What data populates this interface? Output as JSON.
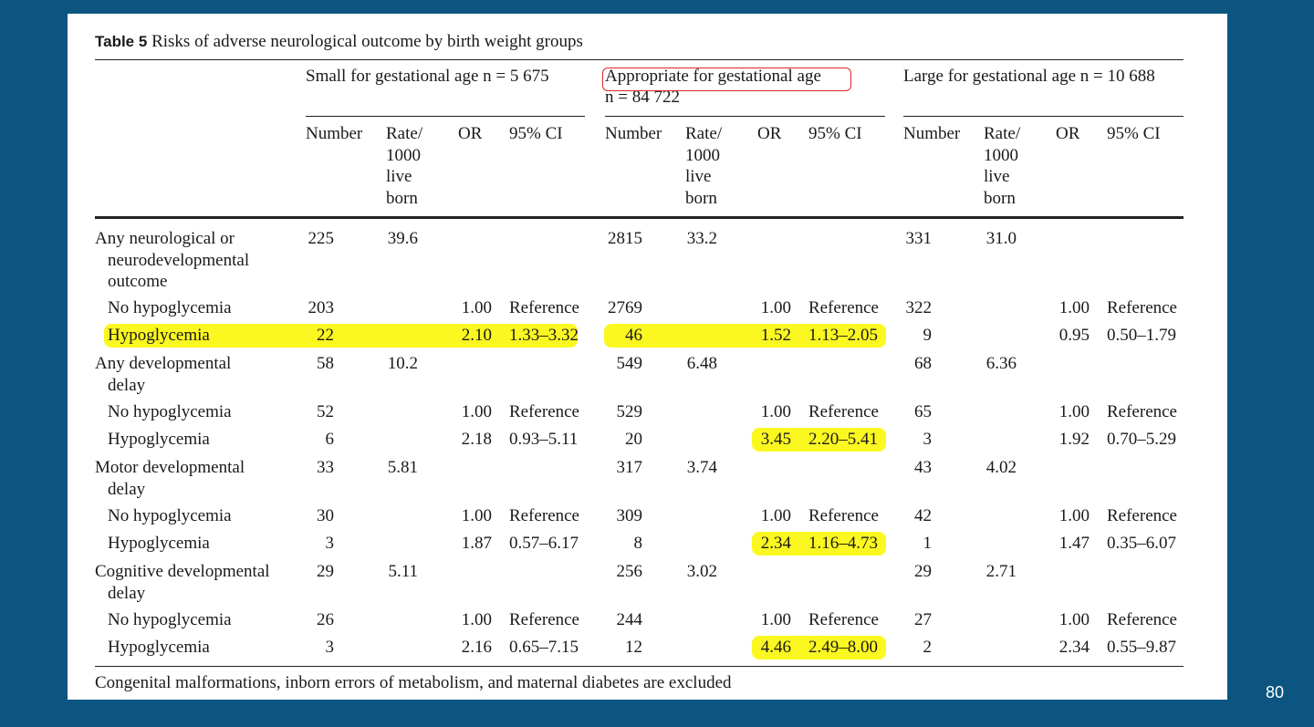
{
  "title_label": "Table 5",
  "title_text": "Risks of adverse neurological outcome by birth weight groups",
  "groups": [
    {
      "label": "Small for gestational age n = 5 675"
    },
    {
      "label": "Appropriate for gestational age",
      "label2": "n = 84 722"
    },
    {
      "label": "Large for gestational age n = 10 688"
    }
  ],
  "subheaders": {
    "number": "Number",
    "rate": [
      "Rate/",
      "1000",
      "live",
      "born"
    ],
    "or": "OR",
    "ci": "95% CI"
  },
  "rows": [
    {
      "label": [
        "Any neurological or",
        "neurodevelopmental",
        "outcome"
      ],
      "indent": false,
      "cells": [
        [
          "225",
          "39.6",
          "",
          ""
        ],
        [
          "2815",
          "33.2",
          "",
          ""
        ],
        [
          "331",
          "31.0",
          "",
          ""
        ]
      ]
    },
    {
      "label": [
        "No hypoglycemia"
      ],
      "indent": true,
      "cells": [
        [
          "203",
          "",
          "1.00",
          "Reference"
        ],
        [
          "2769",
          "",
          "1.00",
          "Reference"
        ],
        [
          "322",
          "",
          "1.00",
          "Reference"
        ]
      ]
    },
    {
      "label": [
        "Hypoglycemia"
      ],
      "indent": true,
      "cells": [
        [
          "22",
          "",
          "2.10",
          "1.33–3.32"
        ],
        [
          "46",
          "",
          "1.52",
          "1.13–2.05"
        ],
        [
          "9",
          "",
          "0.95",
          "0.50–1.79"
        ]
      ]
    },
    {
      "label": [
        "Any developmental",
        "delay"
      ],
      "indent": false,
      "cells": [
        [
          "58",
          "10.2",
          "",
          ""
        ],
        [
          "549",
          "6.48",
          "",
          ""
        ],
        [
          "68",
          "6.36",
          "",
          ""
        ]
      ]
    },
    {
      "label": [
        "No hypoglycemia"
      ],
      "indent": true,
      "cells": [
        [
          "52",
          "",
          "1.00",
          "Reference"
        ],
        [
          "529",
          "",
          "1.00",
          "Reference"
        ],
        [
          "65",
          "",
          "1.00",
          "Reference"
        ]
      ]
    },
    {
      "label": [
        "Hypoglycemia"
      ],
      "indent": true,
      "cells": [
        [
          "6",
          "",
          "2.18",
          "0.93–5.11"
        ],
        [
          "20",
          "",
          "3.45",
          "2.20–5.41"
        ],
        [
          "3",
          "",
          "1.92",
          "0.70–5.29"
        ]
      ]
    },
    {
      "label": [
        "Motor developmental",
        "delay"
      ],
      "indent": false,
      "cells": [
        [
          "33",
          "5.81",
          "",
          ""
        ],
        [
          "317",
          "3.74",
          "",
          ""
        ],
        [
          "43",
          "4.02",
          "",
          ""
        ]
      ]
    },
    {
      "label": [
        "No hypoglycemia"
      ],
      "indent": true,
      "cells": [
        [
          "30",
          "",
          "1.00",
          "Reference"
        ],
        [
          "309",
          "",
          "1.00",
          "Reference"
        ],
        [
          "42",
          "",
          "1.00",
          "Reference"
        ]
      ]
    },
    {
      "label": [
        "Hypoglycemia"
      ],
      "indent": true,
      "cells": [
        [
          "3",
          "",
          "1.87",
          "0.57–6.17"
        ],
        [
          "8",
          "",
          "2.34",
          "1.16–4.73"
        ],
        [
          "1",
          "",
          "1.47",
          "0.35–6.07"
        ]
      ]
    },
    {
      "label": [
        "Cognitive developmental",
        "delay"
      ],
      "indent": false,
      "cells": [
        [
          "29",
          "5.11",
          "",
          ""
        ],
        [
          "256",
          "3.02",
          "",
          ""
        ],
        [
          "29",
          "2.71",
          "",
          ""
        ]
      ]
    },
    {
      "label": [
        "No hypoglycemia"
      ],
      "indent": true,
      "cells": [
        [
          "26",
          "",
          "1.00",
          "Reference"
        ],
        [
          "244",
          "",
          "1.00",
          "Reference"
        ],
        [
          "27",
          "",
          "1.00",
          "Reference"
        ]
      ]
    },
    {
      "label": [
        "Hypoglycemia"
      ],
      "indent": true,
      "cells": [
        [
          "3",
          "",
          "2.16",
          "0.65–7.15"
        ],
        [
          "12",
          "",
          "4.46",
          "2.49–8.00"
        ],
        [
          "2",
          "",
          "2.34",
          "0.55–9.87"
        ]
      ]
    }
  ],
  "footnote": "Congenital malformations, inborn errors of metabolism, and maternal diabetes are excluded",
  "slide_number": "80",
  "highlight_color": "#fbf720",
  "annotation_box_color": "#d9262c"
}
